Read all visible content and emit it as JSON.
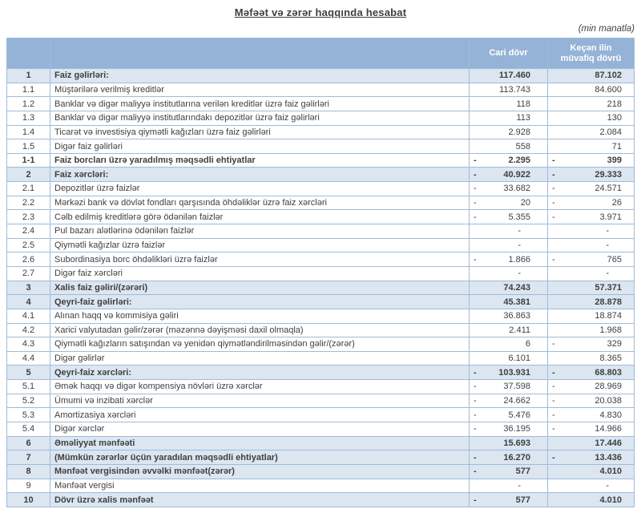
{
  "title": "Məfəət və zərər haqqında hesabat",
  "unit_note": "(min manatla)",
  "columns": {
    "number": "",
    "label": "",
    "current": "Cari dövr",
    "previous": "Keçən ilin müvafiq dövrü"
  },
  "colors": {
    "header_bg": "#95B3D7",
    "header_text": "#FFFFFF",
    "highlight_bg": "#DCE6F1",
    "border": "#9FBBD8",
    "text": "#3F3F3F"
  },
  "rows": [
    {
      "num": "1",
      "label": "Faiz gəlirləri:",
      "cur": "117.460",
      "cur_neg": false,
      "prev": "87.102",
      "prev_neg": false,
      "bold": true,
      "hl": true
    },
    {
      "num": "1.1",
      "label": "Müştərilərə verilmiş kreditlər",
      "cur": "113.743",
      "cur_neg": false,
      "prev": "84.600",
      "prev_neg": false,
      "bold": false,
      "hl": false
    },
    {
      "num": "1.2",
      "label": "Banklar və digər maliyyə institutlarına verilən kreditlər üzrə faiz gəlirləri",
      "cur": "118",
      "cur_neg": false,
      "prev": "218",
      "prev_neg": false,
      "bold": false,
      "hl": false
    },
    {
      "num": "1.3",
      "label": "Banklar və digər maliyyə institutlarındakı depozitlər üzrə faiz gəlirləri",
      "cur": "113",
      "cur_neg": false,
      "prev": "130",
      "prev_neg": false,
      "bold": false,
      "hl": false
    },
    {
      "num": "1.4",
      "label": "Ticarət və investisiya qiymətli kağızları üzrə faiz gəlirləri",
      "cur": "2.928",
      "cur_neg": false,
      "prev": "2.084",
      "prev_neg": false,
      "bold": false,
      "hl": false
    },
    {
      "num": "1.5",
      "label": "Digər faiz gəlirləri",
      "cur": "558",
      "cur_neg": false,
      "prev": "71",
      "prev_neg": false,
      "bold": false,
      "hl": false
    },
    {
      "num": "1-1",
      "label": "Faiz borcları üzrə yaradılmış məqsədli ehtiyatlar",
      "cur": "2.295",
      "cur_neg": true,
      "prev": "399",
      "prev_neg": true,
      "bold": true,
      "hl": false
    },
    {
      "num": "2",
      "label": "Faiz xərcləri:",
      "cur": "40.922",
      "cur_neg": true,
      "prev": "29.333",
      "prev_neg": true,
      "bold": true,
      "hl": true
    },
    {
      "num": "2.1",
      "label": "Depozitlər üzrə faizlər",
      "cur": "33.682",
      "cur_neg": true,
      "prev": "24.571",
      "prev_neg": true,
      "bold": false,
      "hl": false
    },
    {
      "num": "2.2",
      "label": "Mərkəzi bank və dövlət fondları qarşısında öhdəliklər üzrə faiz xərcləri",
      "cur": "20",
      "cur_neg": true,
      "prev": "26",
      "prev_neg": true,
      "bold": false,
      "hl": false
    },
    {
      "num": "2.3",
      "label": "Cəlb edilmiş kreditlərə görə ödənilən faizlər",
      "cur": "5.355",
      "cur_neg": true,
      "prev": "3.971",
      "prev_neg": true,
      "bold": false,
      "hl": false
    },
    {
      "num": "2.4",
      "label": "Pul bazarı alətlərinə ödənilən faizlər",
      "cur": "-",
      "cur_neg": false,
      "prev": "-",
      "prev_neg": false,
      "bold": false,
      "hl": false
    },
    {
      "num": "2.5",
      "label": "Qiymətli kağızlar üzrə faizlər",
      "cur": "-",
      "cur_neg": false,
      "prev": "-",
      "prev_neg": false,
      "bold": false,
      "hl": false
    },
    {
      "num": "2.6",
      "label": "Subordinasiya borc öhdəlikləri üzrə faizlər",
      "cur": "1.866",
      "cur_neg": true,
      "prev": "765",
      "prev_neg": true,
      "bold": false,
      "hl": false
    },
    {
      "num": "2.7",
      "label": "Digər faiz xərcləri",
      "cur": "-",
      "cur_neg": false,
      "prev": "-",
      "prev_neg": false,
      "bold": false,
      "hl": false
    },
    {
      "num": "3",
      "label": "Xalis faiz gəliri/(zərəri)",
      "cur": "74.243",
      "cur_neg": false,
      "prev": "57.371",
      "prev_neg": false,
      "bold": true,
      "hl": true
    },
    {
      "num": "4",
      "label": "Qeyri-faiz gəlirləri:",
      "cur": "45.381",
      "cur_neg": false,
      "prev": "28.878",
      "prev_neg": false,
      "bold": true,
      "hl": true
    },
    {
      "num": "4.1",
      "label": "Alınan haqq və kommisiya gəliri",
      "cur": "36.863",
      "cur_neg": false,
      "prev": "18.874",
      "prev_neg": false,
      "bold": false,
      "hl": false
    },
    {
      "num": "4.2",
      "label": "Xarici valyutadan gəlir/zərər (məzənnə dəyişməsi daxil olmaqla)",
      "cur": "2.411",
      "cur_neg": false,
      "prev": "1.968",
      "prev_neg": false,
      "bold": false,
      "hl": false
    },
    {
      "num": "4.3",
      "label": "Qiymətli kağızların satışından və yenidən qiymətləndirilməsindən gəlir/(zərər)",
      "cur": "6",
      "cur_neg": false,
      "prev": "329",
      "prev_neg": true,
      "bold": false,
      "hl": false
    },
    {
      "num": "4.4",
      "label": "Digər gəlirlər",
      "cur": "6.101",
      "cur_neg": false,
      "prev": "8.365",
      "prev_neg": false,
      "bold": false,
      "hl": false
    },
    {
      "num": "5",
      "label": "Qeyri-faiz xərcləri:",
      "cur": "103.931",
      "cur_neg": true,
      "prev": "68.803",
      "prev_neg": true,
      "bold": true,
      "hl": true
    },
    {
      "num": "5.1",
      "label": "Əmək haqqı və digər kompensiya növləri üzrə xərclər",
      "cur": "37.598",
      "cur_neg": true,
      "prev": "28.969",
      "prev_neg": true,
      "bold": false,
      "hl": false
    },
    {
      "num": "5.2",
      "label": "Ümumi və inzibati xərclər",
      "cur": "24.662",
      "cur_neg": true,
      "prev": "20.038",
      "prev_neg": true,
      "bold": false,
      "hl": false
    },
    {
      "num": "5.3",
      "label": "Amortizasiya xərcləri",
      "cur": "5.476",
      "cur_neg": true,
      "prev": "4.830",
      "prev_neg": true,
      "bold": false,
      "hl": false
    },
    {
      "num": "5.4",
      "label": "Digər xərclər",
      "cur": "36.195",
      "cur_neg": true,
      "prev": "14.966",
      "prev_neg": true,
      "bold": false,
      "hl": false
    },
    {
      "num": "6",
      "label": "Əməliyyat mənfəəti",
      "cur": "15.693",
      "cur_neg": false,
      "prev": "17.446",
      "prev_neg": false,
      "bold": true,
      "hl": true
    },
    {
      "num": "7",
      "label": "(Mümkün zərərlər üçün yaradılan məqsədli ehtiyatlar)",
      "cur": "16.270",
      "cur_neg": true,
      "prev": "13.436",
      "prev_neg": true,
      "bold": true,
      "hl": true
    },
    {
      "num": "8",
      "label": "Mənfəət vergisindən əvvəlki mənfəət(zərər)",
      "cur": "577",
      "cur_neg": true,
      "prev": "4.010",
      "prev_neg": false,
      "bold": true,
      "hl": true
    },
    {
      "num": "9",
      "label": "Mənfəət vergisi",
      "cur": "-",
      "cur_neg": false,
      "prev": "-",
      "prev_neg": false,
      "bold": false,
      "hl": false
    },
    {
      "num": "10",
      "label": "Dövr üzrə xalis mənfəət",
      "cur": "577",
      "cur_neg": true,
      "prev": "4.010",
      "prev_neg": false,
      "bold": true,
      "hl": true
    }
  ]
}
